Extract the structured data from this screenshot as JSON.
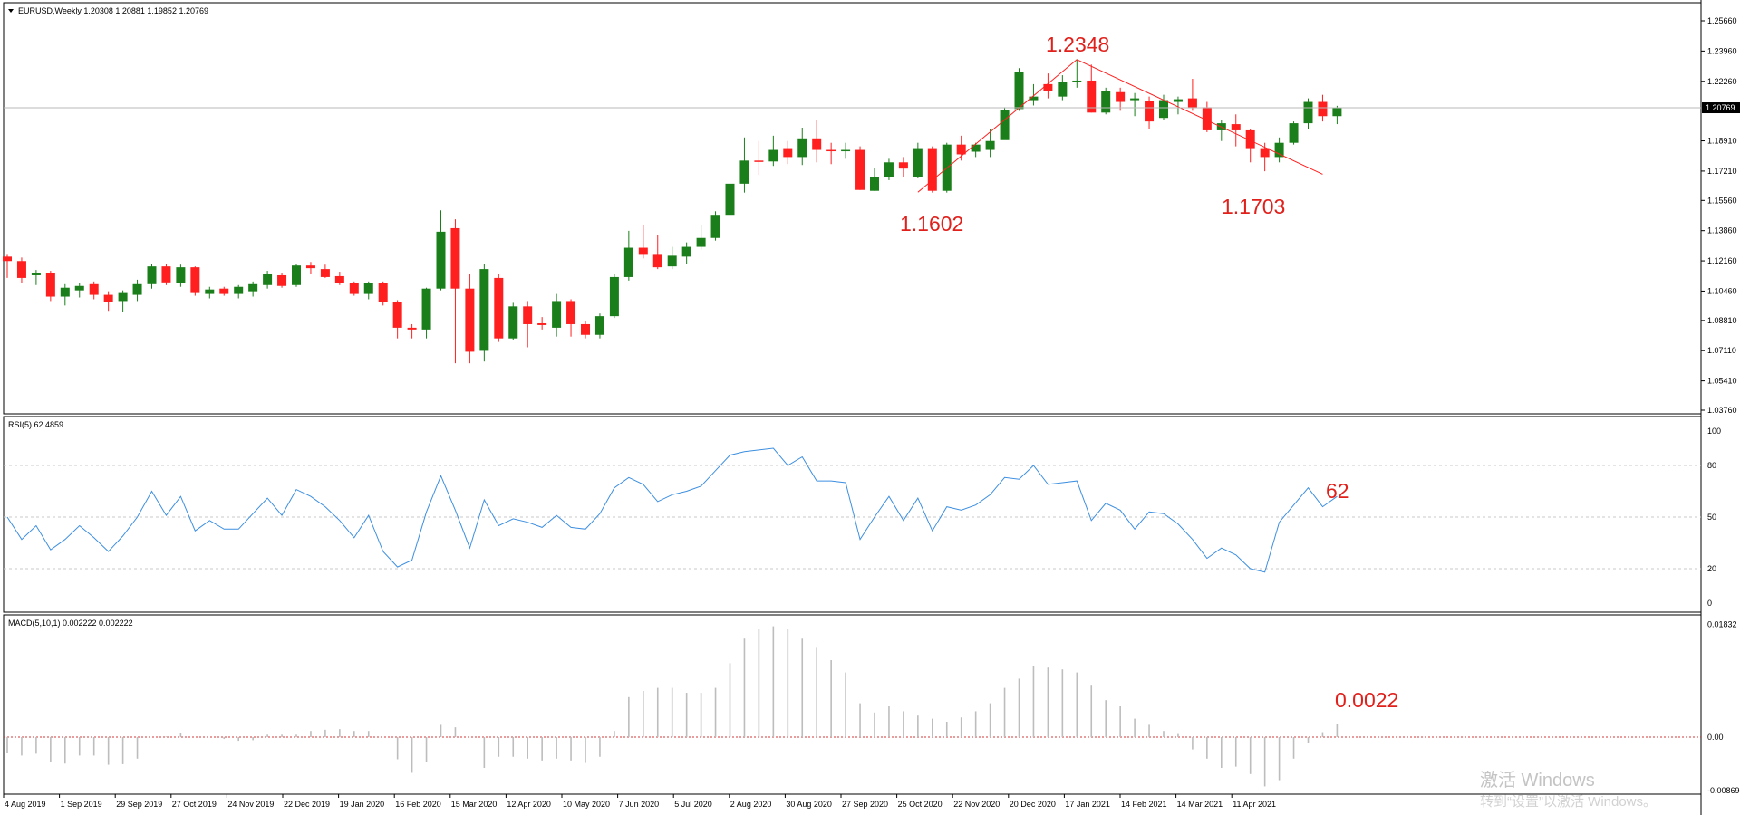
{
  "main_panel": {
    "header": "EURUSD,Weekly  1.20308 1.20881 1.19852 1.20769",
    "price_ticks": [
      "1.25660",
      "1.23960",
      "1.22260",
      "1.20769",
      "1.18910",
      "1.17210",
      "1.15560",
      "1.13860",
      "1.12160",
      "1.10460",
      "1.08810",
      "1.07110",
      "1.05410",
      "1.03760"
    ],
    "current_price_label": "1.20769",
    "annotations": {
      "high": "1.2348",
      "low1": "1.1602",
      "low2": "1.1703"
    }
  },
  "rsi_panel": {
    "header": "RSI(5) 62.4859",
    "ticks": [
      "100",
      "80",
      "50",
      "20",
      "0"
    ],
    "annotation": "62"
  },
  "macd_panel": {
    "header": "MACD(5,10,1) 0.002222 0.002222",
    "ticks": [
      "0.01832",
      "0.00",
      "-0.008698"
    ],
    "annotation": "0.0022"
  },
  "x_axis": {
    "labels": [
      "4 Aug 2019",
      "1 Sep 2019",
      "29 Sep 2019",
      "27 Oct 2019",
      "24 Nov 2019",
      "22 Dec 2019",
      "19 Jan 2020",
      "16 Feb 2020",
      "15 Mar 2020",
      "12 Apr 2020",
      "10 May 2020",
      "7 Jun 2020",
      "5 Jul 2020",
      "2 Aug 2020",
      "30 Aug 2020",
      "27 Sep 2020",
      "25 Oct 2020",
      "22 Nov 2020",
      "20 Dec 2020",
      "17 Jan 2021",
      "14 Feb 2021",
      "14 Mar 2021",
      "11 Apr 2021"
    ]
  },
  "watermark": {
    "line1": "激活 Windows",
    "line2": "转到“设置”以激活 Windows。"
  },
  "colors": {
    "bull": "#1a7f1a",
    "bear": "#ff1f1f",
    "rsi_line": "#3d8fe0",
    "macd_bar": "#bdbdbd",
    "annotation": "#e0201b",
    "zero_line": "#d33a3a"
  },
  "chart_data": [
    {
      "type": "candlestick",
      "title": "EURUSD,Weekly",
      "ylim": [
        1.0376,
        1.2625
      ],
      "y_ticks": [
        1.2566,
        1.2396,
        1.2226,
        1.2077,
        1.1891,
        1.1721,
        1.1556,
        1.1386,
        1.1216,
        1.1046,
        1.0881,
        1.0711,
        1.0541,
        1.0376
      ],
      "candles": [
        [
          1.124,
          1.1215,
          1.125,
          1.112
        ],
        [
          1.1215,
          1.112,
          1.1235,
          1.109
        ],
        [
          1.1135,
          1.115,
          1.1165,
          1.108
        ],
        [
          1.1145,
          1.1015,
          1.116,
          1.099
        ],
        [
          1.1015,
          1.1065,
          1.1085,
          1.0965
        ],
        [
          1.105,
          1.1075,
          1.109,
          1.101
        ],
        [
          1.1085,
          1.1025,
          1.11,
          1.1
        ],
        [
          1.1025,
          1.0985,
          1.1045,
          1.0935
        ],
        [
          1.099,
          1.1035,
          1.105,
          1.093
        ],
        [
          1.1025,
          1.1085,
          1.111,
          1.099
        ],
        [
          1.1085,
          1.1185,
          1.12,
          1.106
        ],
        [
          1.1185,
          1.1095,
          1.12,
          1.108
        ],
        [
          1.109,
          1.118,
          1.1195,
          1.107
        ],
        [
          1.118,
          1.1035,
          1.1185,
          1.102
        ],
        [
          1.103,
          1.1055,
          1.107,
          1.1005
        ],
        [
          1.106,
          1.103,
          1.107,
          1.102
        ],
        [
          1.103,
          1.107,
          1.108,
          1.1005
        ],
        [
          1.1045,
          1.1085,
          1.11,
          1.1015
        ],
        [
          1.108,
          1.114,
          1.116,
          1.106
        ],
        [
          1.1135,
          1.1075,
          1.115,
          1.1065
        ],
        [
          1.108,
          1.119,
          1.12,
          1.107
        ],
        [
          1.119,
          1.1175,
          1.121,
          1.114
        ],
        [
          1.117,
          1.1125,
          1.1195,
          1.112
        ],
        [
          1.113,
          1.109,
          1.1155,
          1.108
        ],
        [
          1.109,
          1.103,
          1.11,
          1.102
        ],
        [
          1.103,
          1.109,
          1.11,
          1.1
        ],
        [
          1.109,
          1.0985,
          1.11,
          1.0965
        ],
        [
          1.0985,
          1.084,
          1.0995,
          1.078
        ],
        [
          1.084,
          1.083,
          1.086,
          1.078
        ],
        [
          1.083,
          1.106,
          1.1065,
          1.078
        ],
        [
          1.106,
          1.138,
          1.15,
          1.105
        ],
        [
          1.14,
          1.106,
          1.145,
          1.064
        ],
        [
          1.106,
          1.0705,
          1.114,
          1.064
        ],
        [
          1.071,
          1.117,
          1.12,
          1.065
        ],
        [
          1.112,
          1.078,
          1.114,
          1.076
        ],
        [
          1.078,
          1.096,
          1.098,
          1.077
        ],
        [
          1.096,
          1.086,
          1.099,
          1.073
        ],
        [
          1.0865,
          1.0855,
          1.09,
          1.083
        ],
        [
          1.084,
          1.099,
          1.103,
          1.079
        ],
        [
          1.099,
          1.086,
          1.1,
          1.079
        ],
        [
          1.086,
          1.08,
          1.0875,
          1.078
        ],
        [
          1.08,
          1.0905,
          1.092,
          1.078
        ],
        [
          1.0905,
          1.1125,
          1.114,
          1.0895
        ],
        [
          1.1125,
          1.129,
          1.1385,
          1.1105
        ],
        [
          1.129,
          1.125,
          1.142,
          1.123
        ],
        [
          1.125,
          1.118,
          1.136,
          1.117
        ],
        [
          1.1185,
          1.1245,
          1.1295,
          1.117
        ],
        [
          1.124,
          1.1295,
          1.132,
          1.12
        ],
        [
          1.1295,
          1.1345,
          1.142,
          1.128
        ],
        [
          1.1345,
          1.1475,
          1.1495,
          1.133
        ],
        [
          1.1475,
          1.165,
          1.17,
          1.146
        ],
        [
          1.165,
          1.178,
          1.191,
          1.16
        ],
        [
          1.178,
          1.1775,
          1.189,
          1.17
        ],
        [
          1.1775,
          1.184,
          1.192,
          1.175
        ],
        [
          1.185,
          1.18,
          1.189,
          1.176
        ],
        [
          1.18,
          1.1905,
          1.1965,
          1.1755
        ],
        [
          1.1905,
          1.184,
          1.201,
          1.177
        ],
        [
          1.184,
          1.1835,
          1.188,
          1.176
        ],
        [
          1.184,
          1.184,
          1.188,
          1.179
        ],
        [
          1.184,
          1.1615,
          1.186,
          1.1615
        ],
        [
          1.161,
          1.169,
          1.174,
          1.161
        ],
        [
          1.169,
          1.177,
          1.179,
          1.167
        ],
        [
          1.177,
          1.1735,
          1.18,
          1.169
        ],
        [
          1.169,
          1.185,
          1.188,
          1.168
        ],
        [
          1.185,
          1.161,
          1.186,
          1.16
        ],
        [
          1.161,
          1.187,
          1.188,
          1.16
        ],
        [
          1.187,
          1.1815,
          1.192,
          1.178
        ],
        [
          1.183,
          1.187,
          1.188,
          1.18
        ],
        [
          1.184,
          1.189,
          1.196,
          1.18
        ],
        [
          1.1895,
          1.2065,
          1.208,
          1.192
        ],
        [
          1.207,
          1.228,
          1.23,
          1.206
        ],
        [
          1.212,
          1.214,
          1.221,
          1.209
        ],
        [
          1.221,
          1.217,
          1.227,
          1.213
        ],
        [
          1.214,
          1.222,
          1.226,
          1.212
        ],
        [
          1.222,
          1.223,
          1.235,
          1.219
        ],
        [
          1.223,
          1.205,
          1.232,
          1.205
        ],
        [
          1.205,
          1.217,
          1.219,
          1.204
        ],
        [
          1.2165,
          1.211,
          1.219,
          1.206
        ],
        [
          1.212,
          1.213,
          1.216,
          1.203
        ],
        [
          1.2115,
          1.2,
          1.214,
          1.196
        ],
        [
          1.202,
          1.212,
          1.215,
          1.201
        ],
        [
          1.211,
          1.2125,
          1.214,
          1.204
        ],
        [
          1.213,
          1.208,
          1.224,
          1.206
        ],
        [
          1.208,
          1.195,
          1.211,
          1.194
        ],
        [
          1.195,
          1.199,
          1.201,
          1.189
        ],
        [
          1.1985,
          1.195,
          1.204,
          1.186
        ],
        [
          1.195,
          1.185,
          1.196,
          1.177
        ],
        [
          1.185,
          1.18,
          1.188,
          1.172
        ],
        [
          1.18,
          1.188,
          1.191,
          1.177
        ],
        [
          1.188,
          1.199,
          1.2,
          1.187
        ],
        [
          1.199,
          1.211,
          1.213,
          1.196
        ],
        [
          1.211,
          1.203,
          1.215,
          1.2
        ],
        [
          1.203,
          1.2077,
          1.2088,
          1.1985
        ]
      ],
      "zigzag": [
        [
          63,
          1.1602
        ],
        [
          74,
          1.2348
        ],
        [
          91,
          1.1703
        ]
      ]
    },
    {
      "type": "line",
      "title": "RSI(5) 62.4859",
      "ylim": [
        0,
        100
      ],
      "values": [
        50,
        37,
        45,
        31,
        37,
        45,
        38,
        30,
        39,
        50,
        65,
        51,
        62,
        42,
        48,
        43,
        43,
        52,
        61,
        51,
        66,
        62,
        56,
        48,
        38,
        51,
        30,
        21,
        25,
        53,
        74,
        54,
        32,
        60,
        45,
        49,
        47,
        44,
        51,
        44,
        43,
        52,
        67,
        73,
        69,
        59,
        63,
        65,
        68,
        77,
        86,
        88,
        89,
        90,
        80,
        85,
        71,
        71,
        70,
        37,
        50,
        62,
        48,
        61,
        42,
        56,
        54,
        57,
        63,
        73,
        72,
        80,
        69,
        70,
        71,
        48,
        58,
        54,
        43,
        53,
        52,
        46,
        37,
        26,
        32,
        28,
        20,
        18,
        47,
        57,
        67,
        56,
        62
      ]
    },
    {
      "type": "bar",
      "title": "MACD(5,10,1) 0.002222 0.002222",
      "ylim": [
        -0.008698,
        0.01832
      ],
      "values": [
        -0.0025,
        -0.003,
        -0.0027,
        -0.004,
        -0.0043,
        -0.003,
        -0.003,
        -0.0045,
        -0.0044,
        -0.0035,
        0.0,
        0.0001,
        0.0006,
        0.0,
        0.0,
        -0.0003,
        -0.0006,
        -0.0005,
        0.0004,
        0.0004,
        0.0004,
        0.001,
        0.0012,
        0.0013,
        0.001,
        0.001,
        0.0,
        -0.0036,
        -0.0058,
        -0.004,
        0.002,
        0.0016,
        0.0,
        -0.005,
        -0.0032,
        -0.0032,
        -0.0035,
        -0.0038,
        -0.0035,
        -0.0038,
        -0.0042,
        -0.0032,
        0.001,
        0.0065,
        0.0075,
        0.008,
        0.008,
        0.0072,
        0.0072,
        0.008,
        0.012,
        0.016,
        0.0175,
        0.018,
        0.0175,
        0.016,
        0.0145,
        0.0125,
        0.0105,
        0.0055,
        0.004,
        0.005,
        0.0042,
        0.0035,
        0.003,
        0.0025,
        0.0032,
        0.0042,
        0.0055,
        0.008,
        0.0095,
        0.0115,
        0.0113,
        0.011,
        0.0105,
        0.0085,
        0.006,
        0.005,
        0.003,
        0.002,
        0.001,
        0.0005,
        -0.002,
        -0.0035,
        -0.005,
        -0.0048,
        -0.006,
        -0.008,
        -0.007,
        -0.0035,
        -0.001,
        0.0008,
        0.0022
      ]
    }
  ]
}
